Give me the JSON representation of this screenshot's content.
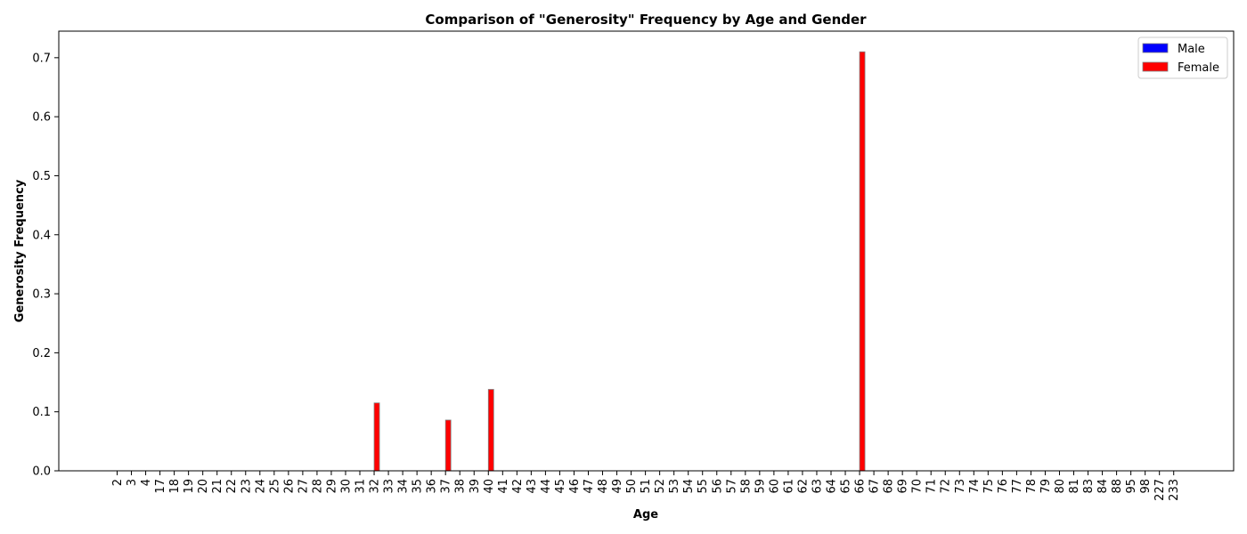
{
  "chart_data": {
    "type": "bar",
    "title": "Comparison of \"Generosity\" Frequency by Age and Gender",
    "xlabel": "Age",
    "ylabel": "Generosity Frequency",
    "ylim": [
      0,
      0.745
    ],
    "yticks": [
      "0.0",
      "0.1",
      "0.2",
      "0.3",
      "0.4",
      "0.5",
      "0.6",
      "0.7"
    ],
    "grid": false,
    "legend_position": "top-right",
    "categories": [
      "2",
      "3",
      "4",
      "17",
      "18",
      "19",
      "20",
      "21",
      "22",
      "23",
      "24",
      "25",
      "26",
      "27",
      "28",
      "29",
      "30",
      "31",
      "32",
      "33",
      "34",
      "35",
      "36",
      "37",
      "38",
      "39",
      "40",
      "41",
      "42",
      "43",
      "44",
      "45",
      "46",
      "47",
      "48",
      "49",
      "50",
      "51",
      "52",
      "53",
      "54",
      "55",
      "56",
      "57",
      "58",
      "59",
      "60",
      "61",
      "62",
      "63",
      "64",
      "65",
      "66",
      "67",
      "68",
      "69",
      "70",
      "71",
      "72",
      "73",
      "74",
      "75",
      "76",
      "77",
      "78",
      "79",
      "80",
      "81",
      "83",
      "84",
      "88",
      "95",
      "98",
      "227",
      "233"
    ],
    "series": [
      {
        "name": "Male",
        "color": "#0000ff",
        "values": [
          0,
          0,
          0,
          0,
          0,
          0,
          0,
          0,
          0,
          0,
          0,
          0,
          0,
          0,
          0,
          0,
          0,
          0,
          0,
          0,
          0,
          0,
          0,
          0,
          0,
          0,
          0,
          0,
          0,
          0,
          0,
          0,
          0,
          0,
          0,
          0,
          0,
          0,
          0,
          0,
          0,
          0,
          0,
          0,
          0,
          0,
          0,
          0,
          0,
          0,
          0,
          0,
          0,
          0,
          0,
          0,
          0,
          0,
          0,
          0,
          0,
          0,
          0,
          0,
          0,
          0,
          0,
          0,
          0,
          0,
          0,
          0,
          0,
          0,
          0
        ]
      },
      {
        "name": "Female",
        "color": "#ff0000",
        "values": [
          0,
          0,
          0,
          0,
          0,
          0,
          0,
          0,
          0,
          0,
          0,
          0,
          0,
          0,
          0,
          0,
          0,
          0,
          0.115,
          0,
          0,
          0,
          0,
          0.086,
          0,
          0,
          0.138,
          0,
          0,
          0,
          0,
          0,
          0,
          0,
          0,
          0,
          0,
          0,
          0,
          0,
          0,
          0,
          0,
          0,
          0,
          0,
          0,
          0,
          0,
          0,
          0,
          0,
          0.71,
          0,
          0,
          0,
          0,
          0,
          0,
          0,
          0,
          0,
          0,
          0,
          0,
          0,
          0,
          0,
          0,
          0,
          0,
          0,
          0,
          0,
          0
        ]
      }
    ]
  }
}
